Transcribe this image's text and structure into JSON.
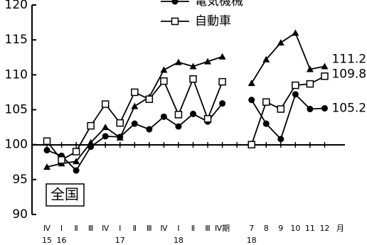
{
  "chart_data": {
    "type": "line",
    "categories": [
      "Ⅳ",
      "Ⅰ",
      "Ⅱ",
      "Ⅲ",
      "Ⅳ",
      "Ⅰ",
      "Ⅱ",
      "Ⅲ",
      "Ⅳ",
      "Ⅰ",
      "Ⅱ",
      "Ⅲ",
      "Ⅳ期",
      null,
      "7",
      "8",
      "9",
      "10",
      "11",
      "12"
    ],
    "years": [
      "15",
      "16",
      null,
      null,
      null,
      "17",
      null,
      null,
      null,
      "18",
      null,
      null,
      null,
      null,
      "18",
      null,
      null,
      null,
      null,
      null
    ],
    "x_unit": "月",
    "annotation": "全国",
    "ylim": [
      90,
      120
    ],
    "yticks": [
      90,
      95,
      100,
      105,
      110,
      115,
      120
    ],
    "series": [
      {
        "color": "#000",
        "marker": "triangle",
        "values": [
          96.8,
          97.3,
          97.6,
          100.3,
          102.5,
          101.0,
          105.5,
          106.8,
          110.7,
          111.8,
          111.2,
          111.9,
          112.6,
          null,
          108.8,
          112.2,
          114.6,
          116.0,
          110.8,
          111.2
        ]
      },
      {
        "name": "電気機械",
        "color": "#000",
        "marker": "circle",
        "values": [
          99.2,
          98.4,
          96.3,
          99.7,
          101.2,
          101.1,
          103.0,
          102.2,
          104.0,
          102.6,
          104.4,
          103.3,
          105.9,
          null,
          106.4,
          103.0,
          100.8,
          107.2,
          105.1,
          105.2
        ]
      },
      {
        "name": "自動車",
        "color": "#000",
        "marker": "square",
        "values": [
          100.5,
          97.8,
          99.0,
          102.7,
          105.8,
          103.1,
          107.5,
          106.5,
          109.1,
          104.3,
          109.4,
          103.7,
          109.0,
          null,
          100.0,
          106.1,
          105.1,
          108.5,
          108.7,
          109.8
        ]
      }
    ]
  }
}
